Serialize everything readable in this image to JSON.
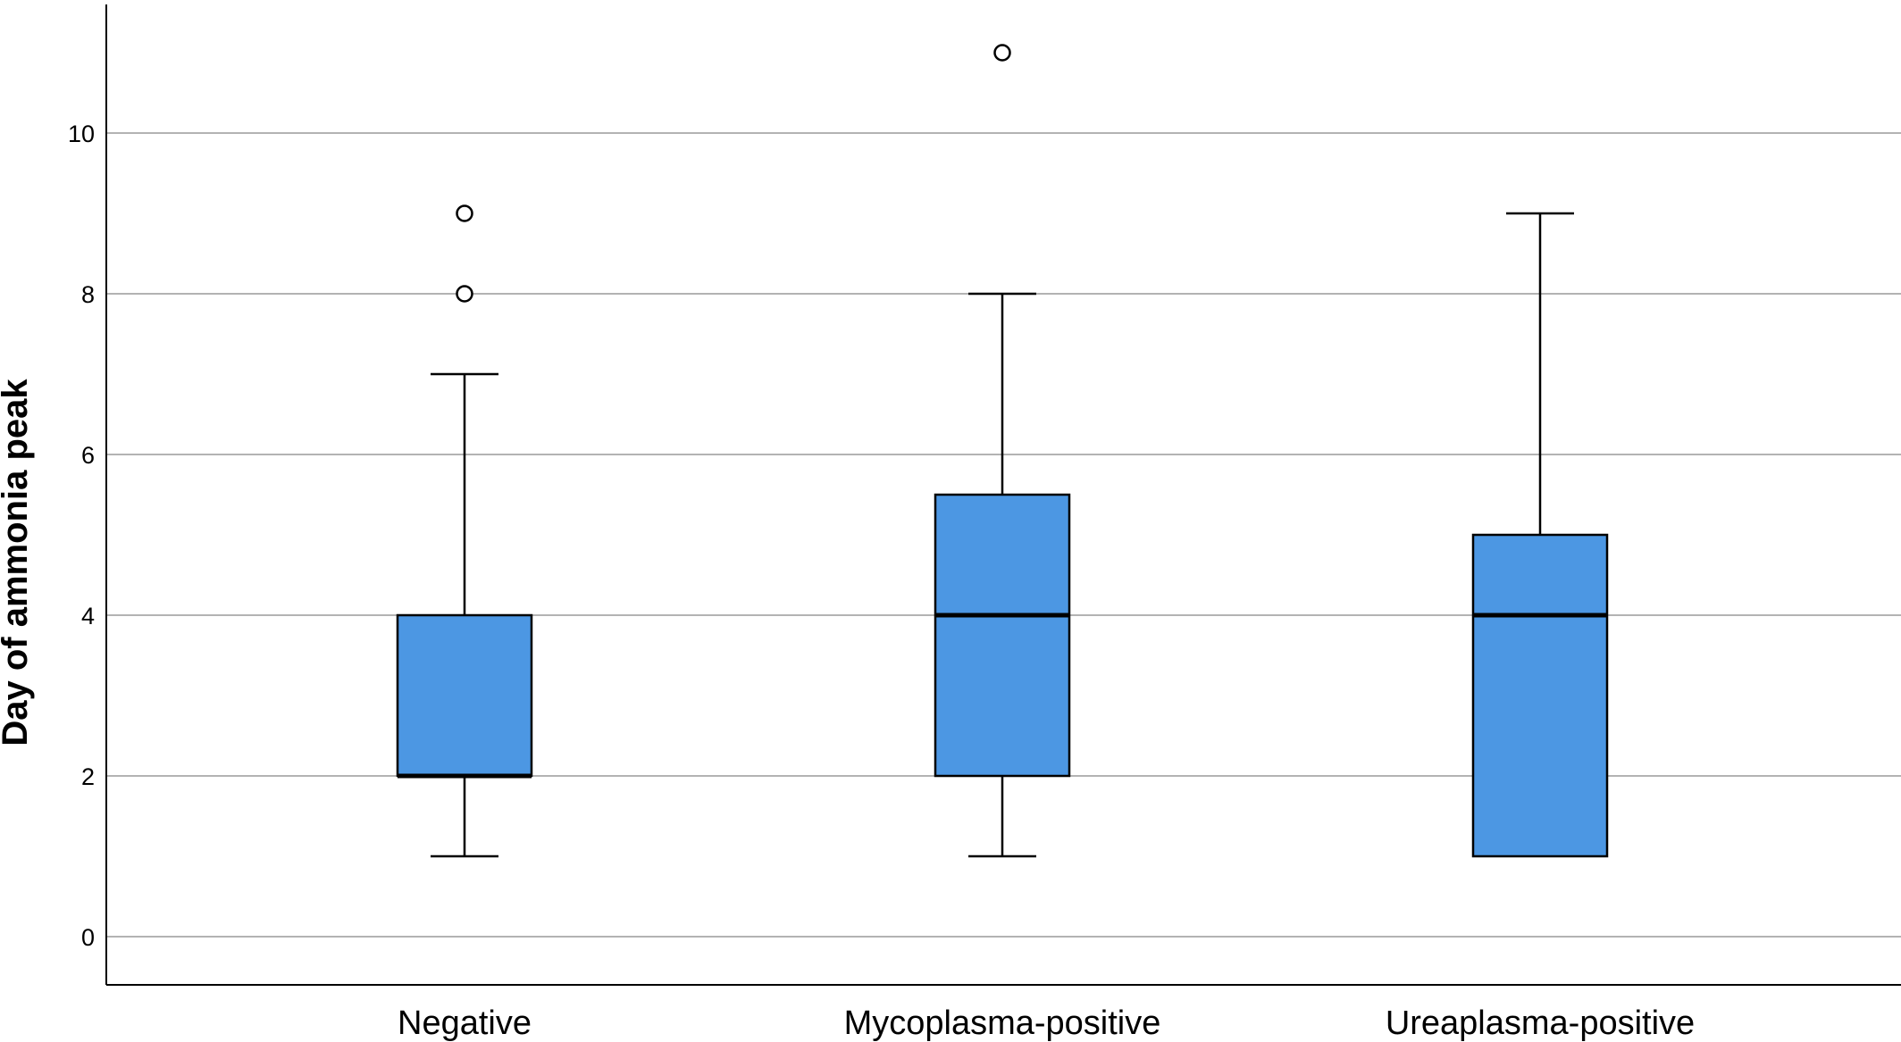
{
  "chart_data": {
    "type": "box",
    "title": "",
    "xlabel": "",
    "ylabel": "Day of ammonia peak",
    "ylim": [
      -0.6,
      11.6
    ],
    "yticks": [
      0,
      2,
      4,
      6,
      8,
      10
    ],
    "ytick_labels": [
      "0",
      "2",
      "4",
      "6",
      "8",
      "10"
    ],
    "grid": "horizontal",
    "box_color": "#4c97e3",
    "categories": [
      "Negative",
      "Mycoplasma-positive",
      "Ureaplasma-positive"
    ],
    "boxes": [
      {
        "category": "Negative",
        "whisker_low": 1,
        "q1": 2,
        "median": 2,
        "q3": 4,
        "whisker_high": 7,
        "outliers": [
          8,
          9
        ]
      },
      {
        "category": "Mycoplasma-positive",
        "whisker_low": 1,
        "q1": 2,
        "median": 4,
        "q3": 5.5,
        "whisker_high": 8,
        "outliers": [
          11
        ]
      },
      {
        "category": "Ureaplasma-positive",
        "whisker_low": 1,
        "q1": 1,
        "median": 4,
        "q3": 5,
        "whisker_high": 9,
        "outliers": []
      }
    ]
  }
}
